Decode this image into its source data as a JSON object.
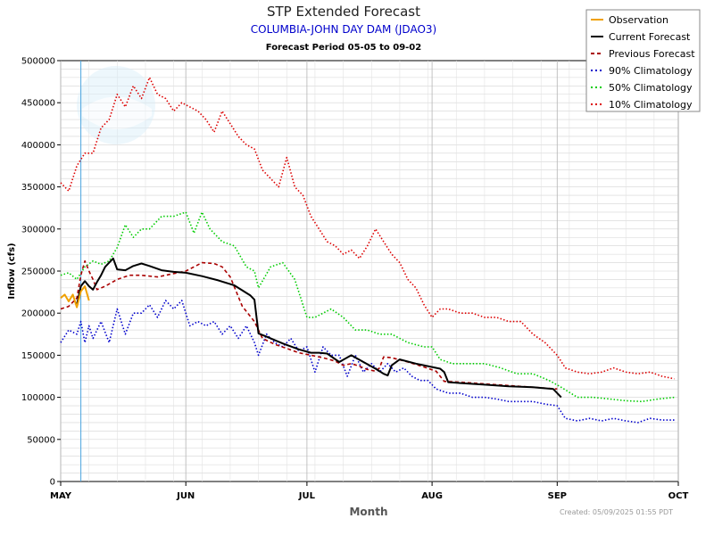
{
  "chart_data": {
    "type": "line",
    "title": "STP Extended Forecast",
    "subtitle": "COLUMBIA-JOHN DAY DAM (JDAO3)",
    "forecast_period": "Forecast Period  05-05 to  09-02",
    "xlabel": "Month",
    "ylabel": "Inflow (cfs)",
    "created": "Created: 05/09/2025 01:55 PDT",
    "xlim": [
      "2025-05-01",
      "2025-10-01"
    ],
    "ylim": [
      0,
      500000
    ],
    "yticks": [
      "0",
      "50000",
      "100000",
      "150000",
      "200000",
      "250000",
      "300000",
      "350000",
      "400000",
      "450000",
      "500000"
    ],
    "xticks": [
      {
        "date": "2025-05-01",
        "label": "MAY"
      },
      {
        "date": "2025-06-01",
        "label": "JUN"
      },
      {
        "date": "2025-07-01",
        "label": "JUL"
      },
      {
        "date": "2025-08-01",
        "label": "AUG"
      },
      {
        "date": "2025-09-01",
        "label": "SEP"
      },
      {
        "date": "2025-10-01",
        "label": "OCT"
      }
    ],
    "grid": true,
    "legend_position": "top-right",
    "current_date_marker": "2025-05-06",
    "series": [
      {
        "name": "Observation",
        "color": "#f0a000",
        "style": "solid",
        "x": [
          "2025-05-01",
          "2025-05-02",
          "2025-05-03",
          "2025-05-04",
          "2025-05-05",
          "2025-05-06",
          "2025-05-07",
          "2025-05-08"
        ],
        "y": [
          218000,
          222000,
          214000,
          222000,
          207000,
          226000,
          232000,
          215000
        ]
      },
      {
        "name": "Current Forecast",
        "color": "#000000",
        "style": "solid",
        "x": [
          "2025-05-05",
          "2025-05-06",
          "2025-05-07",
          "2025-05-08",
          "2025-05-09",
          "2025-05-10",
          "2025-05-11",
          "2025-05-12",
          "2025-05-14",
          "2025-05-15",
          "2025-05-17",
          "2025-05-19",
          "2025-05-21",
          "2025-05-23",
          "2025-05-26",
          "2025-05-29",
          "2025-06-01",
          "2025-06-05",
          "2025-06-09",
          "2025-06-13",
          "2025-06-17",
          "2025-06-18",
          "2025-06-19",
          "2025-06-21",
          "2025-06-25",
          "2025-06-29",
          "2025-07-02",
          "2025-07-04",
          "2025-07-06",
          "2025-07-09",
          "2025-07-12",
          "2025-07-15",
          "2025-07-18",
          "2025-07-20",
          "2025-07-21",
          "2025-07-22",
          "2025-07-24",
          "2025-07-28",
          "2025-08-01",
          "2025-08-03",
          "2025-08-04",
          "2025-08-05",
          "2025-08-08",
          "2025-08-14",
          "2025-08-20",
          "2025-08-26",
          "2025-08-31",
          "2025-09-02"
        ],
        "y": [
          210000,
          232000,
          238000,
          232000,
          228000,
          237000,
          245000,
          255000,
          265000,
          252000,
          251000,
          256000,
          259000,
          256000,
          251000,
          249000,
          248000,
          244000,
          239000,
          233000,
          221000,
          216000,
          176000,
          172000,
          164000,
          157000,
          153000,
          153000,
          152000,
          142000,
          150000,
          142000,
          134000,
          128000,
          126000,
          138000,
          145000,
          140000,
          136000,
          134000,
          130000,
          118000,
          117000,
          115000,
          113000,
          112000,
          110000,
          100000
        ]
      },
      {
        "name": "Previous Forecast",
        "color": "#aa0000",
        "style": "dashed",
        "x": [
          "2025-05-01",
          "2025-05-03",
          "2025-05-05",
          "2025-05-06",
          "2025-05-07",
          "2025-05-08",
          "2025-05-09",
          "2025-05-10",
          "2025-05-12",
          "2025-05-15",
          "2025-05-18",
          "2025-05-21",
          "2025-05-25",
          "2025-05-29",
          "2025-06-01",
          "2025-06-03",
          "2025-06-05",
          "2025-06-08",
          "2025-06-10",
          "2025-06-12",
          "2025-06-15",
          "2025-06-18",
          "2025-06-20",
          "2025-06-23",
          "2025-06-26",
          "2025-06-29",
          "2025-07-02",
          "2025-07-05",
          "2025-07-08",
          "2025-07-10",
          "2025-07-12",
          "2025-07-14",
          "2025-07-16",
          "2025-07-18",
          "2025-07-19",
          "2025-07-20",
          "2025-07-22",
          "2025-07-26",
          "2025-07-30",
          "2025-08-02",
          "2025-08-03",
          "2025-08-04",
          "2025-08-08",
          "2025-08-14",
          "2025-08-20",
          "2025-08-26",
          "2025-09-01"
        ],
        "y": [
          205000,
          208000,
          218000,
          245000,
          262000,
          250000,
          240000,
          228000,
          232000,
          240000,
          245000,
          245000,
          243000,
          247000,
          250000,
          255000,
          260000,
          259000,
          255000,
          243000,
          208000,
          190000,
          170000,
          163000,
          158000,
          153000,
          150000,
          147000,
          143000,
          138000,
          140000,
          137000,
          133000,
          131000,
          135000,
          148000,
          147000,
          142000,
          136000,
          131000,
          125000,
          119000,
          118000,
          116000,
          114000,
          112000,
          110000
        ]
      },
      {
        "name": "90% Climatology",
        "color": "#0000cc",
        "style": "dotted",
        "x": [
          "2025-05-01",
          "2025-05-03",
          "2025-05-05",
          "2025-05-06",
          "2025-05-07",
          "2025-05-08",
          "2025-05-09",
          "2025-05-10",
          "2025-05-11",
          "2025-05-13",
          "2025-05-15",
          "2025-05-17",
          "2025-05-19",
          "2025-05-21",
          "2025-05-23",
          "2025-05-25",
          "2025-05-27",
          "2025-05-29",
          "2025-05-31",
          "2025-06-02",
          "2025-06-04",
          "2025-06-06",
          "2025-06-08",
          "2025-06-10",
          "2025-06-12",
          "2025-06-14",
          "2025-06-16",
          "2025-06-18",
          "2025-06-19",
          "2025-06-21",
          "2025-06-23",
          "2025-06-25",
          "2025-06-27",
          "2025-06-29",
          "2025-07-01",
          "2025-07-03",
          "2025-07-05",
          "2025-07-07",
          "2025-07-09",
          "2025-07-11",
          "2025-07-13",
          "2025-07-15",
          "2025-07-17",
          "2025-07-19",
          "2025-07-21",
          "2025-07-23",
          "2025-07-25",
          "2025-07-27",
          "2025-07-29",
          "2025-07-31",
          "2025-08-02",
          "2025-08-05",
          "2025-08-08",
          "2025-08-11",
          "2025-08-14",
          "2025-08-17",
          "2025-08-20",
          "2025-08-23",
          "2025-08-26",
          "2025-08-29",
          "2025-09-01",
          "2025-09-03",
          "2025-09-06",
          "2025-09-09",
          "2025-09-12",
          "2025-09-15",
          "2025-09-18",
          "2025-09-21",
          "2025-09-24",
          "2025-09-27",
          "2025-09-30"
        ],
        "y": [
          165000,
          180000,
          175000,
          190000,
          165000,
          185000,
          170000,
          180000,
          190000,
          165000,
          205000,
          175000,
          200000,
          200000,
          210000,
          195000,
          215000,
          205000,
          215000,
          185000,
          190000,
          185000,
          190000,
          175000,
          185000,
          170000,
          185000,
          165000,
          150000,
          175000,
          165000,
          160000,
          170000,
          155000,
          160000,
          130000,
          160000,
          150000,
          150000,
          125000,
          150000,
          130000,
          140000,
          130000,
          140000,
          130000,
          135000,
          125000,
          120000,
          120000,
          110000,
          105000,
          105000,
          100000,
          100000,
          98000,
          95000,
          95000,
          95000,
          92000,
          90000,
          75000,
          72000,
          75000,
          72000,
          75000,
          72000,
          70000,
          75000,
          73000,
          73000
        ]
      },
      {
        "name": "50% Climatology",
        "color": "#00cc00",
        "style": "dotted",
        "x": [
          "2025-05-01",
          "2025-05-03",
          "2025-05-05",
          "2025-05-07",
          "2025-05-09",
          "2025-05-11",
          "2025-05-13",
          "2025-05-15",
          "2025-05-17",
          "2025-05-19",
          "2025-05-21",
          "2025-05-23",
          "2025-05-26",
          "2025-05-29",
          "2025-06-01",
          "2025-06-03",
          "2025-06-05",
          "2025-06-07",
          "2025-06-10",
          "2025-06-13",
          "2025-06-16",
          "2025-06-18",
          "2025-06-19",
          "2025-06-22",
          "2025-06-25",
          "2025-06-28",
          "2025-07-01",
          "2025-07-03",
          "2025-07-05",
          "2025-07-07",
          "2025-07-10",
          "2025-07-13",
          "2025-07-16",
          "2025-07-19",
          "2025-07-22",
          "2025-07-26",
          "2025-07-30",
          "2025-08-01",
          "2025-08-03",
          "2025-08-06",
          "2025-08-10",
          "2025-08-14",
          "2025-08-18",
          "2025-08-22",
          "2025-08-26",
          "2025-08-30",
          "2025-09-02",
          "2025-09-06",
          "2025-09-10",
          "2025-09-14",
          "2025-09-18",
          "2025-09-22",
          "2025-09-26",
          "2025-09-30"
        ],
        "y": [
          245000,
          248000,
          240000,
          255000,
          262000,
          258000,
          262000,
          278000,
          305000,
          290000,
          300000,
          300000,
          315000,
          315000,
          320000,
          295000,
          320000,
          300000,
          285000,
          280000,
          255000,
          250000,
          230000,
          255000,
          260000,
          240000,
          195000,
          195000,
          200000,
          205000,
          195000,
          180000,
          180000,
          175000,
          175000,
          165000,
          160000,
          160000,
          145000,
          140000,
          140000,
          140000,
          135000,
          128000,
          128000,
          120000,
          112000,
          100000,
          100000,
          98000,
          96000,
          95000,
          98000,
          100000
        ]
      },
      {
        "name": "10% Climatology",
        "color": "#dd0000",
        "style": "dotted",
        "x": [
          "2025-05-01",
          "2025-05-03",
          "2025-05-05",
          "2025-05-07",
          "2025-05-09",
          "2025-05-11",
          "2025-05-13",
          "2025-05-15",
          "2025-05-17",
          "2025-05-19",
          "2025-05-21",
          "2025-05-23",
          "2025-05-25",
          "2025-05-27",
          "2025-05-29",
          "2025-05-31",
          "2025-06-02",
          "2025-06-04",
          "2025-06-06",
          "2025-06-08",
          "2025-06-10",
          "2025-06-12",
          "2025-06-14",
          "2025-06-16",
          "2025-06-18",
          "2025-06-20",
          "2025-06-22",
          "2025-06-24",
          "2025-06-26",
          "2025-06-28",
          "2025-06-30",
          "2025-07-02",
          "2025-07-04",
          "2025-07-06",
          "2025-07-08",
          "2025-07-10",
          "2025-07-12",
          "2025-07-14",
          "2025-07-16",
          "2025-07-18",
          "2025-07-20",
          "2025-07-22",
          "2025-07-24",
          "2025-07-26",
          "2025-07-28",
          "2025-07-30",
          "2025-08-01",
          "2025-08-03",
          "2025-08-05",
          "2025-08-08",
          "2025-08-11",
          "2025-08-14",
          "2025-08-17",
          "2025-08-20",
          "2025-08-23",
          "2025-08-26",
          "2025-08-29",
          "2025-09-01",
          "2025-09-03",
          "2025-09-06",
          "2025-09-09",
          "2025-09-12",
          "2025-09-15",
          "2025-09-18",
          "2025-09-21",
          "2025-09-24",
          "2025-09-27",
          "2025-09-30"
        ],
        "y": [
          355000,
          345000,
          375000,
          390000,
          390000,
          420000,
          430000,
          460000,
          445000,
          470000,
          455000,
          480000,
          460000,
          455000,
          440000,
          450000,
          445000,
          440000,
          430000,
          415000,
          440000,
          425000,
          410000,
          400000,
          395000,
          370000,
          360000,
          350000,
          385000,
          350000,
          340000,
          315000,
          300000,
          285000,
          280000,
          270000,
          275000,
          265000,
          280000,
          300000,
          285000,
          270000,
          260000,
          240000,
          230000,
          210000,
          195000,
          205000,
          205000,
          200000,
          200000,
          195000,
          195000,
          190000,
          190000,
          175000,
          165000,
          150000,
          135000,
          130000,
          128000,
          130000,
          135000,
          130000,
          128000,
          130000,
          125000,
          122000
        ]
      }
    ]
  }
}
